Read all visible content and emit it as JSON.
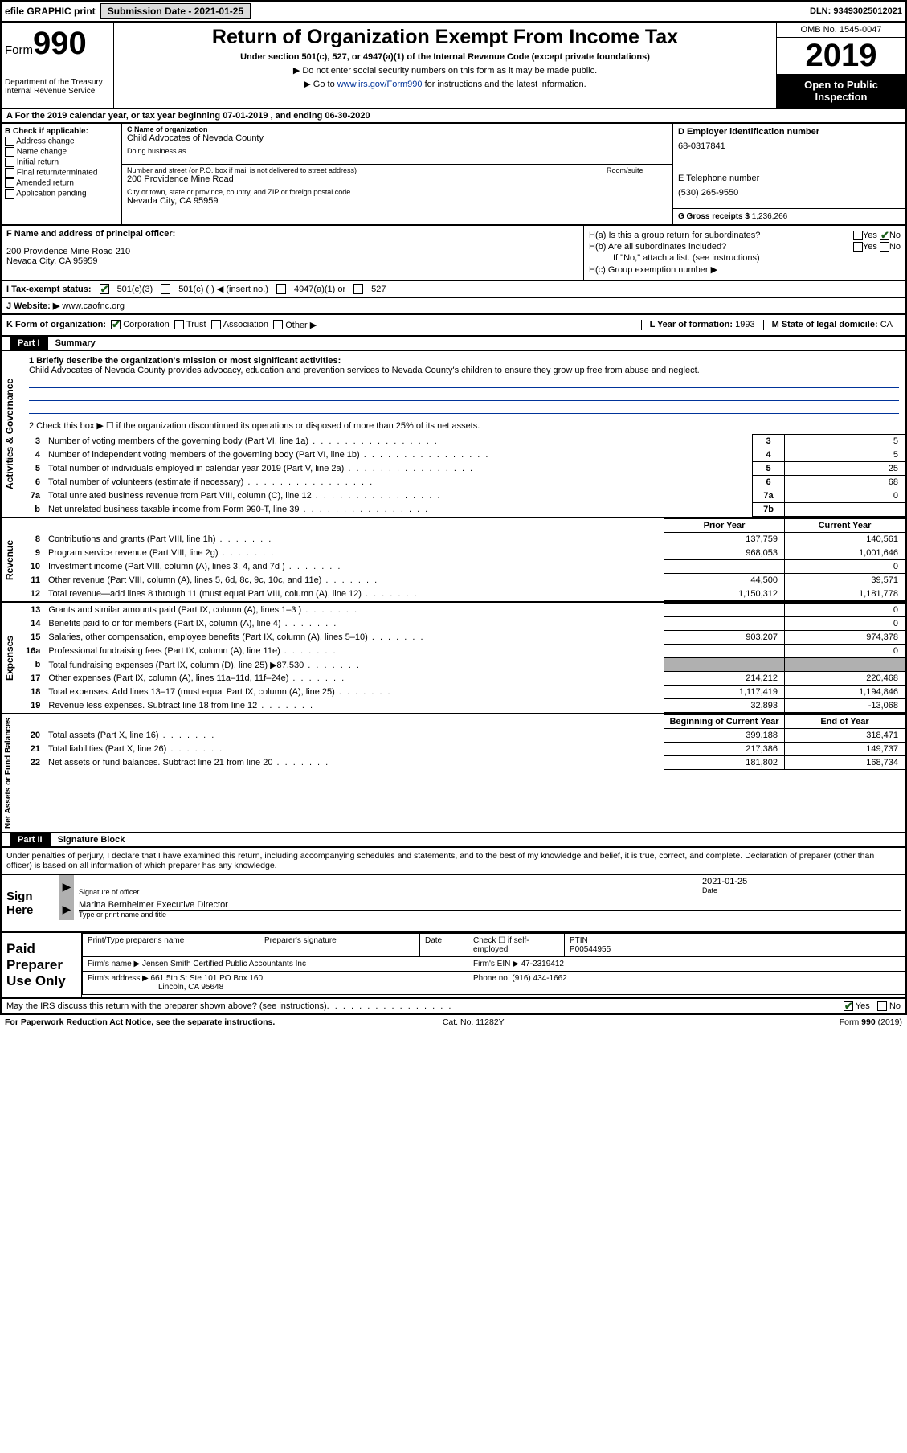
{
  "topbar": {
    "efile": "efile GRAPHIC print",
    "submission_label": "Submission Date - 2021-01-25",
    "dln": "DLN: 93493025012021"
  },
  "header": {
    "form_prefix": "Form",
    "form_number": "990",
    "dept": "Department of the Treasury\nInternal Revenue Service",
    "title": "Return of Organization Exempt From Income Tax",
    "subtitle": "Under section 501(c), 527, or 4947(a)(1) of the Internal Revenue Code (except private foundations)",
    "note1": "▶ Do not enter social security numbers on this form as it may be made public.",
    "note2_pre": "▶ Go to ",
    "note2_link": "www.irs.gov/Form990",
    "note2_post": " for instructions and the latest information.",
    "omb": "OMB No. 1545-0047",
    "year": "2019",
    "open": "Open to Public Inspection"
  },
  "row_a": "A For the 2019 calendar year, or tax year beginning 07-01-2019    , and ending 06-30-2020",
  "check_b": {
    "title": "B Check if applicable:",
    "items": [
      "Address change",
      "Name change",
      "Initial return",
      "Final return/terminated",
      "Amended return",
      "Application pending"
    ]
  },
  "block_c": {
    "name_label": "C Name of organization",
    "name": "Child Advocates of Nevada County",
    "dba_label": "Doing business as",
    "street_label": "Number and street (or P.O. box if mail is not delivered to street address)",
    "street": "200 Providence Mine Road",
    "suite_label": "Room/suite",
    "city_label": "City or town, state or province, country, and ZIP or foreign postal code",
    "city": "Nevada City, CA  95959"
  },
  "block_d": {
    "ein_label": "D Employer identification number",
    "ein": "68-0317841",
    "phone_label": "E Telephone number",
    "phone": "(530) 265-9550",
    "gross_label": "G Gross receipts $",
    "gross": "1,236,266"
  },
  "block_f": {
    "label": "F Name and address of principal officer:",
    "line1": "200 Providence Mine Road 210",
    "line2": "Nevada City, CA  95959"
  },
  "block_h": {
    "ha": "H(a)  Is this a group return for subordinates?",
    "hb": "H(b)  Are all subordinates included?",
    "hb_note": "If \"No,\" attach a list. (see instructions)",
    "hc": "H(c)  Group exemption number ▶",
    "yes": "Yes",
    "no": "No"
  },
  "line_i": {
    "label": "I   Tax-exempt status:",
    "opts": [
      "501(c)(3)",
      "501(c) (  ) ◀ (insert no.)",
      "4947(a)(1) or",
      "527"
    ]
  },
  "line_j": {
    "label": "J   Website: ▶",
    "value": "www.caofnc.org"
  },
  "line_k": {
    "label": "K Form of organization:",
    "opts": [
      "Corporation",
      "Trust",
      "Association",
      "Other ▶"
    ],
    "l_label": "L Year of formation:",
    "l_val": "1993",
    "m_label": "M State of legal domicile:",
    "m_val": "CA"
  },
  "part1": {
    "part": "Part I",
    "title": "Summary",
    "line1_label": "1  Briefly describe the organization's mission or most significant activities:",
    "mission": "Child Advocates of Nevada County provides advocacy, education and prevention services to Nevada County's children to ensure they grow up free from abuse and neglect.",
    "line2": "2   Check this box ▶ ☐  if the organization discontinued its operations or disposed of more than 25% of its net assets.",
    "rows_gov": [
      {
        "n": "3",
        "t": "Number of voting members of the governing body (Part VI, line 1a)",
        "box": "3",
        "v": "5"
      },
      {
        "n": "4",
        "t": "Number of independent voting members of the governing body (Part VI, line 1b)",
        "box": "4",
        "v": "5"
      },
      {
        "n": "5",
        "t": "Total number of individuals employed in calendar year 2019 (Part V, line 2a)",
        "box": "5",
        "v": "25"
      },
      {
        "n": "6",
        "t": "Total number of volunteers (estimate if necessary)",
        "box": "6",
        "v": "68"
      },
      {
        "n": "7a",
        "t": "Total unrelated business revenue from Part VIII, column (C), line 12",
        "box": "7a",
        "v": "0"
      },
      {
        "n": "b",
        "t": "Net unrelated business taxable income from Form 990-T, line 39",
        "box": "7b",
        "v": ""
      }
    ],
    "hdr_prior": "Prior Year",
    "hdr_current": "Current Year",
    "rows_rev": [
      {
        "n": "8",
        "t": "Contributions and grants (Part VIII, line 1h)",
        "p": "137,759",
        "c": "140,561"
      },
      {
        "n": "9",
        "t": "Program service revenue (Part VIII, line 2g)",
        "p": "968,053",
        "c": "1,001,646"
      },
      {
        "n": "10",
        "t": "Investment income (Part VIII, column (A), lines 3, 4, and 7d )",
        "p": "",
        "c": "0"
      },
      {
        "n": "11",
        "t": "Other revenue (Part VIII, column (A), lines 5, 6d, 8c, 9c, 10c, and 11e)",
        "p": "44,500",
        "c": "39,571"
      },
      {
        "n": "12",
        "t": "Total revenue—add lines 8 through 11 (must equal Part VIII, column (A), line 12)",
        "p": "1,150,312",
        "c": "1,181,778"
      }
    ],
    "rows_exp": [
      {
        "n": "13",
        "t": "Grants and similar amounts paid (Part IX, column (A), lines 1–3 )",
        "p": "",
        "c": "0"
      },
      {
        "n": "14",
        "t": "Benefits paid to or for members (Part IX, column (A), line 4)",
        "p": "",
        "c": "0"
      },
      {
        "n": "15",
        "t": "Salaries, other compensation, employee benefits (Part IX, column (A), lines 5–10)",
        "p": "903,207",
        "c": "974,378"
      },
      {
        "n": "16a",
        "t": "Professional fundraising fees (Part IX, column (A), line 11e)",
        "p": "",
        "c": "0"
      },
      {
        "n": "b",
        "t": "Total fundraising expenses (Part IX, column (D), line 25) ▶87,530",
        "p": "grey",
        "c": "grey"
      },
      {
        "n": "17",
        "t": "Other expenses (Part IX, column (A), lines 11a–11d, 11f–24e)",
        "p": "214,212",
        "c": "220,468"
      },
      {
        "n": "18",
        "t": "Total expenses. Add lines 13–17 (must equal Part IX, column (A), line 25)",
        "p": "1,117,419",
        "c": "1,194,846"
      },
      {
        "n": "19",
        "t": "Revenue less expenses. Subtract line 18 from line 12",
        "p": "32,893",
        "c": "-13,068"
      }
    ],
    "hdr_begin": "Beginning of Current Year",
    "hdr_end": "End of Year",
    "rows_net": [
      {
        "n": "20",
        "t": "Total assets (Part X, line 16)",
        "p": "399,188",
        "c": "318,471"
      },
      {
        "n": "21",
        "t": "Total liabilities (Part X, line 26)",
        "p": "217,386",
        "c": "149,737"
      },
      {
        "n": "22",
        "t": "Net assets or fund balances. Subtract line 21 from line 20",
        "p": "181,802",
        "c": "168,734"
      }
    ],
    "side_labels": [
      "Activities & Governance",
      "Revenue",
      "Expenses",
      "Net Assets or Fund Balances"
    ]
  },
  "part2": {
    "part": "Part II",
    "title": "Signature Block",
    "decl": "Under penalties of perjury, I declare that I have examined this return, including accompanying schedules and statements, and to the best of my knowledge and belief, it is true, correct, and complete. Declaration of preparer (other than officer) is based on all information of which preparer has any knowledge."
  },
  "sign": {
    "left": "Sign Here",
    "sig_label": "Signature of officer",
    "date_label": "Date",
    "date": "2021-01-25",
    "name": "Marina Bernheimer  Executive Director",
    "name_label": "Type or print name and title"
  },
  "prep": {
    "left": "Paid Preparer Use Only",
    "r1c1": "Print/Type preparer's name",
    "r1c2": "Preparer's signature",
    "r1c3": "Date",
    "r1c4_label": "Check ☐ if self-employed",
    "r1c5_label": "PTIN",
    "r1c5": "P00544955",
    "r2_label": "Firm's name    ▶",
    "r2_val": "Jensen Smith Certified Public Accountants Inc",
    "r2_ein_label": "Firm's EIN ▶",
    "r2_ein": "47-2319412",
    "r3_label": "Firm's address ▶",
    "r3_val": "661 5th St Ste 101 PO Box 160",
    "r3_city": "Lincoln, CA  95648",
    "r3_phone_label": "Phone no.",
    "r3_phone": "(916) 434-1662"
  },
  "footer": {
    "discuss": "May the IRS discuss this return with the preparer shown above? (see instructions)",
    "yes": "Yes",
    "no": "No",
    "paperwork": "For Paperwork Reduction Act Notice, see the separate instructions.",
    "cat": "Cat. No. 11282Y",
    "form": "Form 990 (2019)"
  }
}
